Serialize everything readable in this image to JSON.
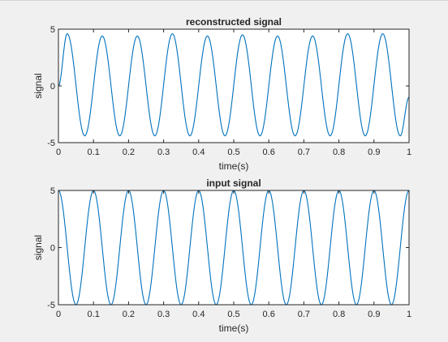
{
  "chart_data": [
    {
      "type": "line",
      "title": "reconstructed signal",
      "xlabel": "time(s)",
      "ylabel": "signal",
      "xlim": [
        0,
        1
      ],
      "ylim": [
        -5,
        5
      ],
      "xticks": [
        "0",
        "0.1",
        "0.2",
        "0.3",
        "0.4",
        "0.5",
        "0.6",
        "0.7",
        "0.8",
        "0.9",
        "1"
      ],
      "yticks": [
        "-5",
        "0",
        "5"
      ],
      "grid": false,
      "series": [
        {
          "color": "#0072bd",
          "x": [
            0,
            0.025,
            0.075,
            0.125,
            0.175,
            0.225,
            0.275,
            0.325,
            0.375,
            0.425,
            0.475,
            0.525,
            0.575,
            0.625,
            0.675,
            0.725,
            0.775,
            0.825,
            0.875,
            0.925,
            0.975,
            1.0
          ],
          "y": [
            0.0,
            4.6,
            -4.4,
            4.4,
            -4.4,
            4.4,
            -4.4,
            4.6,
            -4.4,
            4.4,
            -4.4,
            4.5,
            -4.4,
            4.4,
            -4.4,
            4.4,
            -4.4,
            4.6,
            -4.4,
            4.6,
            -4.4,
            -1.0
          ]
        }
      ]
    },
    {
      "type": "line",
      "title": "input signal",
      "xlabel": "time(s)",
      "ylabel": "signal",
      "xlim": [
        0,
        1
      ],
      "ylim": [
        -5,
        5
      ],
      "xticks": [
        "0",
        "0.1",
        "0.2",
        "0.3",
        "0.4",
        "0.5",
        "0.6",
        "0.7",
        "0.8",
        "0.9",
        "1"
      ],
      "yticks": [
        "-5",
        "0",
        "5"
      ],
      "grid": false,
      "series": [
        {
          "color": "#0072bd",
          "x": [
            0,
            0.05,
            0.1,
            0.15,
            0.2,
            0.25,
            0.3,
            0.35,
            0.4,
            0.45,
            0.5,
            0.55,
            0.6,
            0.65,
            0.7,
            0.75,
            0.8,
            0.85,
            0.9,
            0.95,
            1.0
          ],
          "y": [
            5,
            -5,
            5,
            -5,
            5,
            -5,
            5,
            -5,
            5,
            -5,
            5,
            -5,
            5,
            -5,
            5,
            -5,
            5,
            -5,
            5,
            -5,
            5
          ]
        }
      ]
    }
  ]
}
